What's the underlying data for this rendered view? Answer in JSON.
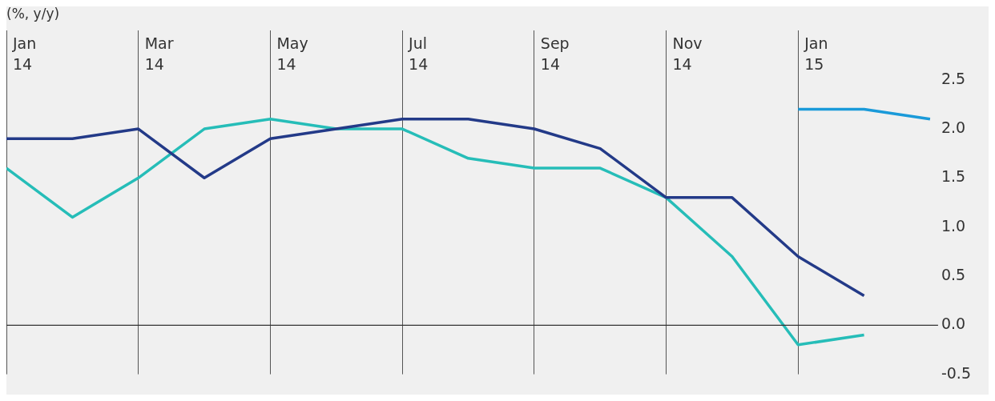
{
  "chart_data": {
    "type": "line",
    "ylabel": "(%, y/y)",
    "categories": [
      "Jan 14",
      null,
      "Mar 14",
      null,
      "May 14",
      null,
      "Jul 14",
      null,
      "Sep 14",
      null,
      "Nov 14",
      null,
      "Jan 15",
      null,
      null
    ],
    "series": [
      {
        "color": "#233a88",
        "values": [
          1.9,
          1.9,
          2.0,
          1.5,
          1.9,
          2.0,
          2.1,
          2.1,
          2.0,
          1.8,
          1.3,
          1.3,
          0.7,
          0.3,
          null
        ]
      },
      {
        "color": "#26bdb8",
        "values": [
          1.6,
          1.1,
          1.5,
          2.0,
          2.1,
          2.0,
          2.0,
          1.7,
          1.6,
          1.6,
          1.3,
          0.7,
          -0.2,
          -0.1,
          null
        ]
      },
      {
        "color": "#1a9ad9",
        "values": [
          null,
          null,
          null,
          null,
          null,
          null,
          null,
          null,
          null,
          null,
          null,
          null,
          2.2,
          2.2,
          2.1
        ]
      }
    ],
    "ylim": [
      -0.5,
      3.0
    ],
    "yticks": [
      -0.5,
      {
        "value": 0,
        "label": "0.0"
      },
      0.5,
      {
        "value": 1,
        "label": "1.0"
      },
      1.5,
      {
        "value": 2,
        "label": "2.0"
      },
      2.5
    ],
    "grid": "x",
    "legend": false,
    "marker": "none",
    "line_style": "solid",
    "ref_lines": [
      {
        "axis": "y",
        "value": 0,
        "color": "#333333"
      }
    ]
  }
}
